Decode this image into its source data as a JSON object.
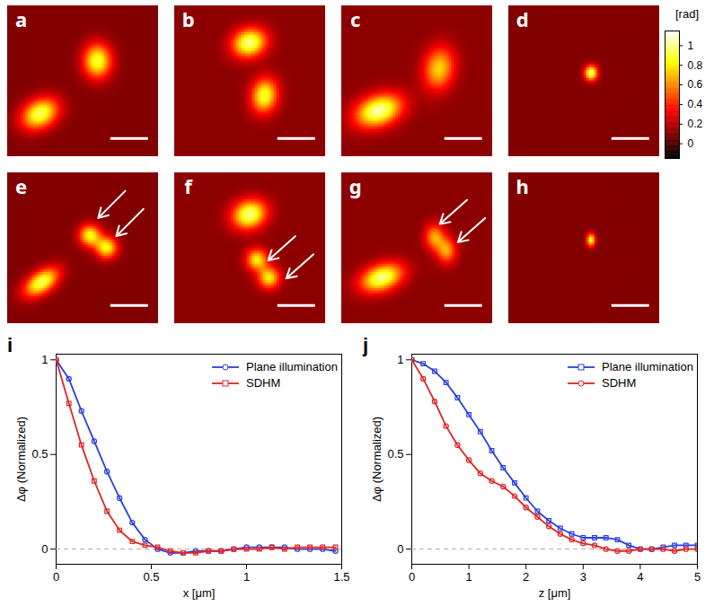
{
  "chart_data": [
    {
      "type": "heatmap",
      "panels": [
        {
          "title": "a",
          "background": 0.1,
          "blobs": [
            {
              "x": 0.22,
              "y": 0.72,
              "sx": 0.09,
              "sy": 0.065,
              "angle": -30,
              "peak": 0.95
            },
            {
              "x": 0.6,
              "y": 0.37,
              "sx": 0.065,
              "sy": 0.08,
              "angle": 0,
              "peak": 0.9
            }
          ]
        },
        {
          "title": "b",
          "background": 0.12,
          "blobs": [
            {
              "x": 0.5,
              "y": 0.25,
              "sx": 0.08,
              "sy": 0.065,
              "angle": -20,
              "peak": 1.0
            },
            {
              "x": 0.6,
              "y": 0.6,
              "sx": 0.06,
              "sy": 0.08,
              "angle": 10,
              "peak": 0.9
            }
          ]
        },
        {
          "title": "c",
          "background": 0.12,
          "blobs": [
            {
              "x": 0.25,
              "y": 0.7,
              "sx": 0.11,
              "sy": 0.07,
              "angle": -20,
              "peak": 1.05
            },
            {
              "x": 0.65,
              "y": 0.42,
              "sx": 0.07,
              "sy": 0.1,
              "angle": 10,
              "peak": 0.75
            }
          ]
        },
        {
          "title": "d",
          "background": 0.1,
          "blobs": [
            {
              "x": 0.55,
              "y": 0.45,
              "sx": 0.03,
              "sy": 0.035,
              "angle": 0,
              "peak": 1.0
            }
          ]
        },
        {
          "title": "e",
          "background": 0.1,
          "blobs": [
            {
              "x": 0.23,
              "y": 0.73,
              "sx": 0.09,
              "sy": 0.05,
              "angle": -35,
              "peak": 0.95
            },
            {
              "x": 0.55,
              "y": 0.42,
              "sx": 0.05,
              "sy": 0.05,
              "angle": 0,
              "peak": 0.85
            },
            {
              "x": 0.66,
              "y": 0.5,
              "sx": 0.05,
              "sy": 0.05,
              "angle": 0,
              "peak": 0.85
            }
          ]
        },
        {
          "title": "f",
          "background": 0.12,
          "blobs": [
            {
              "x": 0.5,
              "y": 0.28,
              "sx": 0.08,
              "sy": 0.065,
              "angle": -20,
              "peak": 1.0
            },
            {
              "x": 0.55,
              "y": 0.58,
              "sx": 0.05,
              "sy": 0.05,
              "angle": 0,
              "peak": 0.8
            },
            {
              "x": 0.63,
              "y": 0.7,
              "sx": 0.05,
              "sy": 0.05,
              "angle": 0,
              "peak": 0.8
            }
          ]
        },
        {
          "title": "g",
          "background": 0.12,
          "blobs": [
            {
              "x": 0.27,
              "y": 0.7,
              "sx": 0.1,
              "sy": 0.06,
              "angle": -20,
              "peak": 1.0
            },
            {
              "x": 0.62,
              "y": 0.43,
              "sx": 0.045,
              "sy": 0.06,
              "angle": 0,
              "peak": 0.65
            },
            {
              "x": 0.7,
              "y": 0.52,
              "sx": 0.045,
              "sy": 0.06,
              "angle": 0,
              "peak": 0.65
            }
          ]
        },
        {
          "title": "h",
          "background": 0.1,
          "blobs": [
            {
              "x": 0.55,
              "y": 0.45,
              "sx": 0.02,
              "sy": 0.03,
              "angle": 0,
              "peak": 0.9
            }
          ]
        }
      ],
      "colorbar": {
        "range": [
          -0.15,
          1.15
        ],
        "ticks": [
          0,
          0.2,
          0.4,
          0.6,
          0.8,
          1
        ],
        "label": "[rad]"
      }
    },
    {
      "type": "line",
      "title": "i",
      "x": [
        0,
        0.067,
        0.133,
        0.2,
        0.267,
        0.333,
        0.4,
        0.467,
        0.533,
        0.6,
        0.667,
        0.733,
        0.8,
        0.867,
        0.933,
        1.0,
        1.067,
        1.133,
        1.2,
        1.267,
        1.333,
        1.4,
        1.467
      ],
      "series": [
        {
          "name": "Plane illumination",
          "color": "#2b3fe0",
          "marker": "circle",
          "line_style": "solid",
          "values": [
            1,
            0.9,
            0.73,
            0.57,
            0.41,
            0.27,
            0.14,
            0.05,
            0.0,
            -0.02,
            -0.02,
            -0.01,
            -0.01,
            -0.01,
            0.0,
            0.01,
            0.01,
            0.01,
            0.01,
            0.0,
            0.0,
            0.0,
            -0.01
          ]
        },
        {
          "name": "SDHM",
          "color": "#e02424",
          "marker": "square",
          "line_style": "solid",
          "values": [
            1,
            0.77,
            0.55,
            0.36,
            0.2,
            0.1,
            0.04,
            0.02,
            0.01,
            -0.01,
            -0.02,
            -0.02,
            -0.01,
            -0.01,
            0.0,
            0.0,
            0.0,
            0.01,
            0.0,
            0.01,
            0.01,
            0.01,
            0.01
          ]
        }
      ],
      "xlabel": "x [μm]",
      "ylabel": "Δφ (Normalized)",
      "xlim": [
        0,
        1.5
      ],
      "xticks": [
        0,
        0.5,
        1,
        1.5
      ],
      "ylim": [
        -0.08,
        1.03
      ],
      "yticks": [
        0,
        0.5,
        1
      ],
      "legend": "upper right"
    },
    {
      "type": "line",
      "title": "j",
      "x": [
        0,
        0.2,
        0.4,
        0.6,
        0.8,
        1.0,
        1.2,
        1.4,
        1.6,
        1.8,
        2.0,
        2.2,
        2.4,
        2.6,
        2.8,
        3.0,
        3.2,
        3.4,
        3.6,
        3.8,
        4.0,
        4.2,
        4.4,
        4.6,
        4.8,
        5.0
      ],
      "series": [
        {
          "name": "Plane illumination",
          "color": "#2b3fe0",
          "marker": "square",
          "line_style": "solid",
          "values": [
            1,
            0.98,
            0.94,
            0.88,
            0.8,
            0.71,
            0.62,
            0.52,
            0.43,
            0.35,
            0.27,
            0.2,
            0.15,
            0.11,
            0.08,
            0.06,
            0.06,
            0.06,
            0.05,
            0.02,
            0.0,
            0.0,
            0.01,
            0.02,
            0.02,
            0.02
          ]
        },
        {
          "name": "SDHM",
          "color": "#e02424",
          "marker": "circle",
          "line_style": "solid",
          "values": [
            1,
            0.9,
            0.78,
            0.65,
            0.55,
            0.47,
            0.4,
            0.36,
            0.33,
            0.28,
            0.22,
            0.17,
            0.12,
            0.08,
            0.05,
            0.03,
            0.02,
            0.0,
            -0.01,
            -0.01,
            0.0,
            0.0,
            0.0,
            -0.01,
            0.0,
            0.0
          ]
        }
      ],
      "xlabel": "z [μm]",
      "ylabel": "Δφ (Normalized)",
      "xlim": [
        0,
        5
      ],
      "xticks": [
        0,
        1,
        2,
        3,
        4,
        5
      ],
      "ylim": [
        -0.08,
        1.03
      ],
      "yticks": [
        0,
        0.5,
        1
      ],
      "legend": "upper right"
    }
  ]
}
